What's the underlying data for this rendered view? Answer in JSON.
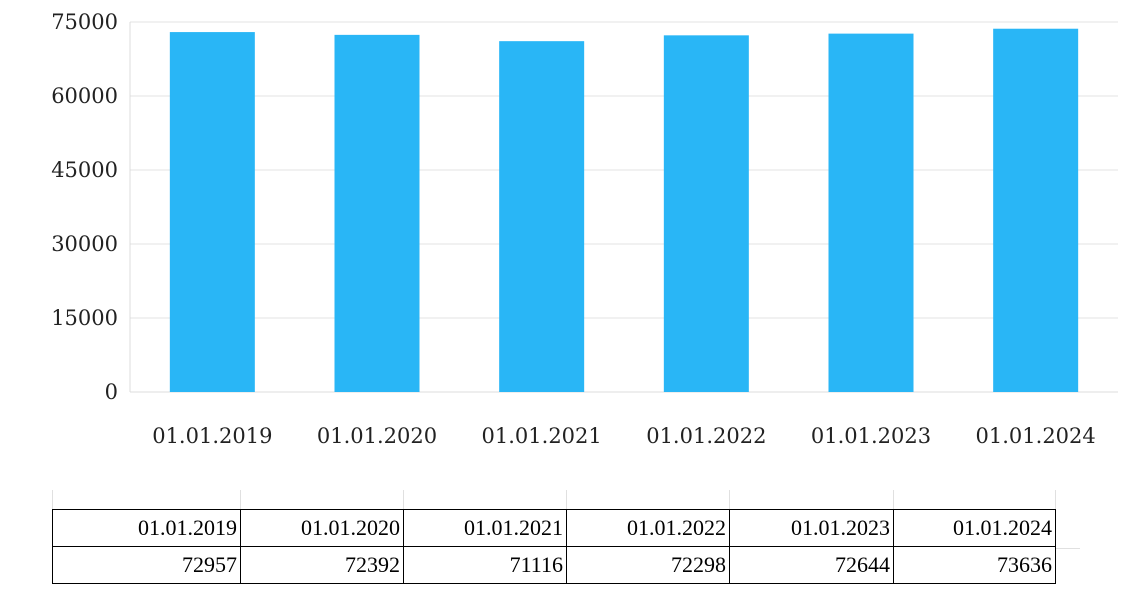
{
  "chart_data": {
    "type": "bar",
    "categories": [
      "01.01.2019",
      "01.01.2020",
      "01.01.2021",
      "01.01.2022",
      "01.01.2023",
      "01.01.2024"
    ],
    "values": [
      72957,
      72392,
      71116,
      72298,
      72644,
      73636
    ],
    "yticks": [
      "0",
      "15000",
      "30000",
      "45000",
      "60000",
      "75000"
    ],
    "ylim": [
      0,
      75000
    ],
    "grid": true,
    "legend": "none",
    "bar_color": "#29b6f6"
  },
  "table": {
    "headers": [
      "01.01.2019",
      "01.01.2020",
      "01.01.2021",
      "01.01.2022",
      "01.01.2023",
      "01.01.2024"
    ],
    "values": [
      "72957",
      "72392",
      "71116",
      "72298",
      "72644",
      "73636"
    ]
  }
}
